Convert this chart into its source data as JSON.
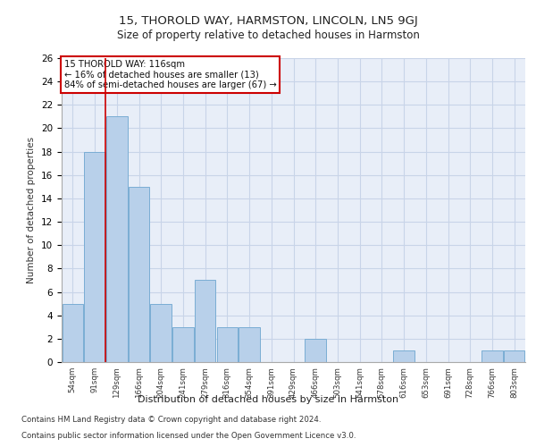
{
  "title": "15, THOROLD WAY, HARMSTON, LINCOLN, LN5 9GJ",
  "subtitle": "Size of property relative to detached houses in Harmston",
  "xlabel": "Distribution of detached houses by size in Harmston",
  "ylabel": "Number of detached properties",
  "categories": [
    "54sqm",
    "91sqm",
    "129sqm",
    "166sqm",
    "204sqm",
    "241sqm",
    "279sqm",
    "316sqm",
    "354sqm",
    "391sqm",
    "429sqm",
    "466sqm",
    "503sqm",
    "541sqm",
    "578sqm",
    "616sqm",
    "653sqm",
    "691sqm",
    "728sqm",
    "766sqm",
    "803sqm"
  ],
  "values": [
    5,
    18,
    21,
    15,
    5,
    3,
    7,
    3,
    3,
    0,
    0,
    2,
    0,
    0,
    0,
    1,
    0,
    0,
    0,
    1,
    1
  ],
  "bar_color": "#b8d0ea",
  "bar_edge_color": "#7aadd4",
  "annotation_text": "15 THOROLD WAY: 116sqm\n← 16% of detached houses are smaller (13)\n84% of semi-detached houses are larger (67) →",
  "annotation_box_color": "#ffffff",
  "annotation_box_edge_color": "#cc0000",
  "vline_color": "#cc0000",
  "vline_x": 1.5,
  "ylim": [
    0,
    26
  ],
  "grid_color": "#c8d4e8",
  "plot_bg_color": "#e8eef8",
  "fig_bg_color": "#ffffff",
  "footer_line1": "Contains HM Land Registry data © Crown copyright and database right 2024.",
  "footer_line2": "Contains public sector information licensed under the Open Government Licence v3.0."
}
